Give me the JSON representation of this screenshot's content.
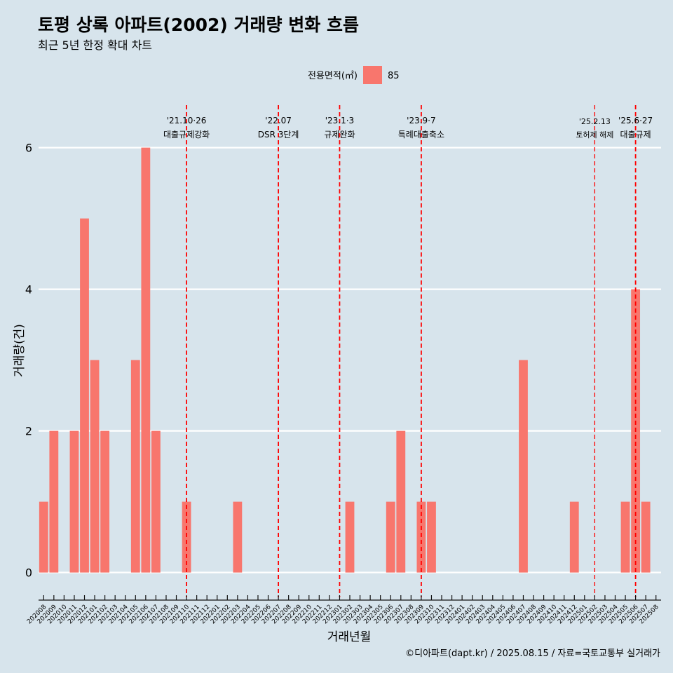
{
  "chart_data": {
    "type": "bar",
    "title": "토평 상록 아파트(2002) 거래량 변화 흐름",
    "subtitle": "최근 5년 한정 확대 차트",
    "xlabel": "거래년월",
    "ylabel": "거래량(건)",
    "ylim": [
      -0.35,
      6.6
    ],
    "yticks": [
      0,
      2,
      4,
      6
    ],
    "grid": "horizontal",
    "legend": {
      "title": "전용면적(㎡)",
      "position": "top-center",
      "entries": [
        {
          "name": "85",
          "color": "#f8766d"
        }
      ]
    },
    "categories": [
      "202008",
      "202009",
      "202010",
      "202011",
      "202012",
      "202101",
      "202102",
      "202103",
      "202104",
      "202105",
      "202106",
      "202107",
      "202108",
      "202109",
      "202110",
      "202111",
      "202112",
      "202201",
      "202202",
      "202203",
      "202204",
      "202205",
      "202206",
      "202207",
      "202208",
      "202209",
      "202210",
      "202211",
      "202212",
      "202301",
      "202302",
      "202303",
      "202304",
      "202305",
      "202306",
      "202307",
      "202308",
      "202309",
      "202310",
      "202311",
      "202312",
      "202401",
      "202402",
      "202403",
      "202404",
      "202405",
      "202406",
      "202407",
      "202408",
      "202409",
      "202410",
      "202411",
      "202412",
      "202501",
      "202502",
      "202503",
      "202504",
      "202505",
      "202506",
      "202507",
      "202508"
    ],
    "series": [
      {
        "name": "85",
        "color": "#f8766d",
        "values": [
          1,
          2,
          0,
          2,
          5,
          3,
          2,
          0,
          0,
          3,
          6,
          2,
          0,
          0,
          1,
          0,
          0,
          0,
          0,
          1,
          0,
          0,
          0,
          0,
          0,
          0,
          0,
          0,
          0,
          0,
          1,
          0,
          0,
          0,
          1,
          2,
          0,
          1,
          1,
          0,
          0,
          0,
          0,
          0,
          0,
          0,
          0,
          3,
          0,
          0,
          0,
          0,
          1,
          0,
          0,
          0,
          0,
          1,
          4,
          1,
          0
        ]
      }
    ],
    "events": [
      {
        "x": "202110",
        "date": "'21.10·26",
        "label": "대출규제강화",
        "size": "normal"
      },
      {
        "x": "202207",
        "date": "'22.07",
        "label": "DSR 3단계",
        "size": "normal"
      },
      {
        "x": "202301",
        "date": "'23.1·3",
        "label": "규제완화",
        "size": "normal"
      },
      {
        "x": "202309",
        "date": "'23.9·7",
        "label": "특례대출축소",
        "size": "normal"
      },
      {
        "x": "202502",
        "date": "'25.2.13",
        "label": "토허제 해제",
        "size": "small"
      },
      {
        "x": "202506",
        "date": "'25.6·27",
        "label": "대출규제",
        "size": "normal"
      }
    ],
    "event_line_color": "#ff0000",
    "caption": "©디아파트(dapt.kr) / 2025.08.15 / 자료=국토교통부 실거래가"
  }
}
